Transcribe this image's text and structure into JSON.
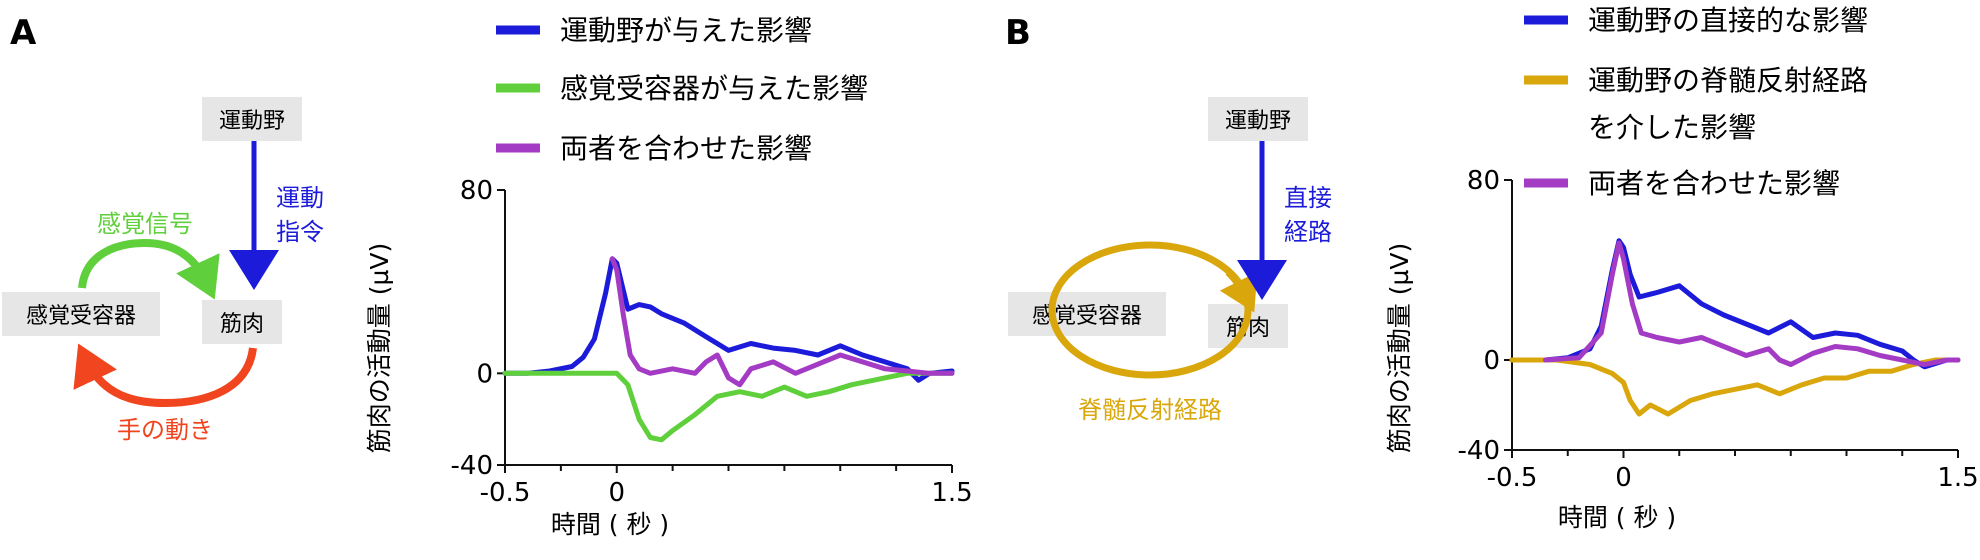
{
  "panels": [
    {
      "letter": "A",
      "diagram": {
        "motor_cortex": "運動野",
        "muscle": "筋肉",
        "receptor": "感覚受容器",
        "motor_command": [
          "運動",
          "指令"
        ],
        "sensory_signal": "感覚信号",
        "hand_movement": "手の動き"
      }
    },
    {
      "letter": "B",
      "diagram": {
        "motor_cortex": "運動野",
        "muscle": "筋肉",
        "receptor": "感覚受容器",
        "direct_path": [
          "直接",
          "経路"
        ],
        "spinal_reflex": "脊髄反射経路"
      }
    }
  ],
  "colors": {
    "blue": "#1b1bd9",
    "green": "#5fcf3b",
    "red_orange": "#f0451e",
    "purple": "#a43bc4",
    "gold": "#d9a70c",
    "box_gray": "#e6e6e6"
  },
  "chart_data": [
    {
      "type": "line",
      "panel": "A",
      "xlabel": "時間 ( 秒 )",
      "ylabel": "筋肉の活動量 (µV)",
      "xlim": [
        -0.5,
        1.5
      ],
      "ylim": [
        -40,
        80
      ],
      "xticks": [
        "-0.5",
        "0",
        "1.5"
      ],
      "yticks": [
        "80",
        "0",
        "-40"
      ],
      "legend_position": "top",
      "series": [
        {
          "name": "運動野が与えた影響",
          "color": "#1b1bd9",
          "points": [
            [
              -0.5,
              0
            ],
            [
              -0.4,
              0
            ],
            [
              -0.3,
              1
            ],
            [
              -0.2,
              3
            ],
            [
              -0.15,
              7
            ],
            [
              -0.1,
              15
            ],
            [
              -0.05,
              35
            ],
            [
              -0.02,
              50
            ],
            [
              0,
              48
            ],
            [
              0.02,
              40
            ],
            [
              0.05,
              28
            ],
            [
              0.1,
              30
            ],
            [
              0.15,
              29
            ],
            [
              0.2,
              26
            ],
            [
              0.3,
              22
            ],
            [
              0.4,
              16
            ],
            [
              0.5,
              10
            ],
            [
              0.6,
              13
            ],
            [
              0.7,
              11
            ],
            [
              0.8,
              10
            ],
            [
              0.9,
              8
            ],
            [
              1.0,
              12
            ],
            [
              1.1,
              8
            ],
            [
              1.2,
              5
            ],
            [
              1.3,
              2
            ],
            [
              1.35,
              -3
            ],
            [
              1.4,
              0
            ],
            [
              1.5,
              1
            ]
          ]
        },
        {
          "name": "感覚受容器が与えた影響",
          "color": "#5fcf3b",
          "points": [
            [
              -0.5,
              0
            ],
            [
              -0.3,
              0
            ],
            [
              -0.1,
              0
            ],
            [
              0,
              0
            ],
            [
              0.05,
              -5
            ],
            [
              0.1,
              -20
            ],
            [
              0.15,
              -28
            ],
            [
              0.2,
              -29
            ],
            [
              0.25,
              -25
            ],
            [
              0.35,
              -18
            ],
            [
              0.45,
              -10
            ],
            [
              0.55,
              -8
            ],
            [
              0.65,
              -10
            ],
            [
              0.75,
              -6
            ],
            [
              0.85,
              -10
            ],
            [
              0.95,
              -8
            ],
            [
              1.05,
              -5
            ],
            [
              1.15,
              -3
            ],
            [
              1.3,
              0
            ],
            [
              1.5,
              0
            ]
          ]
        },
        {
          "name": "両者を合わせた影響",
          "color": "#a43bc4",
          "points": [
            [
              -0.02,
              50
            ],
            [
              0,
              45
            ],
            [
              0.03,
              25
            ],
            [
              0.06,
              8
            ],
            [
              0.1,
              2
            ],
            [
              0.15,
              0
            ],
            [
              0.25,
              2
            ],
            [
              0.35,
              0
            ],
            [
              0.4,
              5
            ],
            [
              0.45,
              8
            ],
            [
              0.5,
              -2
            ],
            [
              0.55,
              -5
            ],
            [
              0.6,
              2
            ],
            [
              0.7,
              5
            ],
            [
              0.8,
              0
            ],
            [
              0.9,
              4
            ],
            [
              1.0,
              8
            ],
            [
              1.1,
              5
            ],
            [
              1.2,
              2
            ],
            [
              1.3,
              1
            ],
            [
              1.4,
              0
            ],
            [
              1.5,
              0
            ]
          ]
        }
      ]
    },
    {
      "type": "line",
      "panel": "B",
      "xlabel": "時間 ( 秒 )",
      "ylabel": "筋肉の活動量 (µV)",
      "xlim": [
        -0.5,
        1.5
      ],
      "ylim": [
        -40,
        80
      ],
      "xticks": [
        "-0.5",
        "0",
        "1.5"
      ],
      "yticks": [
        "80",
        "0",
        "-40"
      ],
      "legend_position": "top",
      "series": [
        {
          "name": "運動野の直接的な影響",
          "color": "#1b1bd9",
          "points": [
            [
              -0.5,
              0
            ],
            [
              -0.35,
              0
            ],
            [
              -0.25,
              1
            ],
            [
              -0.15,
              5
            ],
            [
              -0.1,
              15
            ],
            [
              -0.05,
              40
            ],
            [
              -0.02,
              53
            ],
            [
              0,
              50
            ],
            [
              0.03,
              38
            ],
            [
              0.07,
              28
            ],
            [
              0.15,
              30
            ],
            [
              0.25,
              33
            ],
            [
              0.35,
              25
            ],
            [
              0.45,
              20
            ],
            [
              0.55,
              16
            ],
            [
              0.65,
              12
            ],
            [
              0.75,
              17
            ],
            [
              0.85,
              10
            ],
            [
              0.95,
              12
            ],
            [
              1.05,
              11
            ],
            [
              1.15,
              7
            ],
            [
              1.25,
              4
            ],
            [
              1.3,
              0
            ],
            [
              1.35,
              -3
            ],
            [
              1.45,
              0
            ],
            [
              1.5,
              0
            ]
          ]
        },
        {
          "name": "運動野の脊髄反射経路を介した影響",
          "color": "#d9a70c",
          "points": [
            [
              -0.5,
              0
            ],
            [
              -0.3,
              0
            ],
            [
              -0.15,
              -2
            ],
            [
              -0.05,
              -6
            ],
            [
              0,
              -10
            ],
            [
              0.03,
              -18
            ],
            [
              0.07,
              -24
            ],
            [
              0.12,
              -20
            ],
            [
              0.2,
              -24
            ],
            [
              0.3,
              -18
            ],
            [
              0.4,
              -15
            ],
            [
              0.5,
              -13
            ],
            [
              0.6,
              -11
            ],
            [
              0.7,
              -15
            ],
            [
              0.8,
              -11
            ],
            [
              0.9,
              -8
            ],
            [
              1.0,
              -8
            ],
            [
              1.1,
              -5
            ],
            [
              1.2,
              -5
            ],
            [
              1.3,
              -2
            ],
            [
              1.4,
              0
            ],
            [
              1.5,
              0
            ]
          ]
        },
        {
          "name": "両者を合わせた影響",
          "color": "#a43bc4",
          "points": [
            [
              -0.35,
              0
            ],
            [
              -0.2,
              1
            ],
            [
              -0.1,
              12
            ],
            [
              -0.05,
              38
            ],
            [
              -0.02,
              52
            ],
            [
              0,
              45
            ],
            [
              0.04,
              25
            ],
            [
              0.08,
              12
            ],
            [
              0.15,
              10
            ],
            [
              0.25,
              8
            ],
            [
              0.35,
              10
            ],
            [
              0.45,
              6
            ],
            [
              0.55,
              2
            ],
            [
              0.65,
              5
            ],
            [
              0.7,
              0
            ],
            [
              0.75,
              -2
            ],
            [
              0.85,
              3
            ],
            [
              0.95,
              6
            ],
            [
              1.05,
              5
            ],
            [
              1.15,
              2
            ],
            [
              1.25,
              0
            ],
            [
              1.35,
              -2
            ],
            [
              1.45,
              0
            ],
            [
              1.5,
              0
            ]
          ]
        }
      ]
    }
  ]
}
